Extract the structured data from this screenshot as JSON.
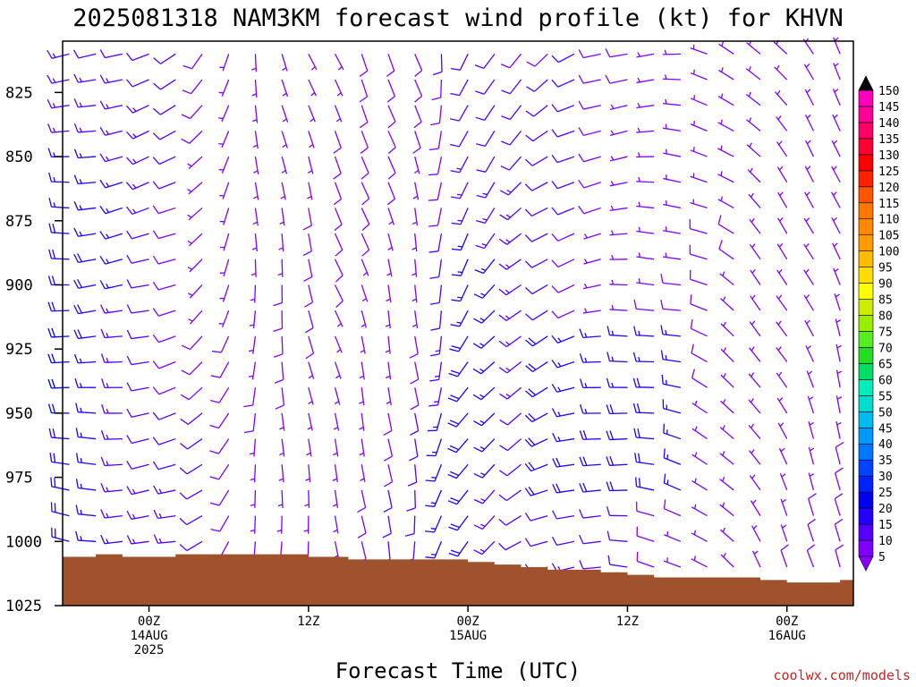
{
  "chart_data": {
    "type": "wind-profile",
    "title": "2025081318 NAM3KM forecast wind profile (kt) for KHVN",
    "xlabel": "Forecast Time (UTC)",
    "credit": "coolwx.com/models",
    "y_axis": {
      "quantity": "pressure (hPa)",
      "scale": "linear",
      "range": [
        805,
        1025
      ],
      "inverted": true,
      "ticks": [
        825,
        850,
        875,
        900,
        925,
        950,
        975,
        1000,
        1025
      ]
    },
    "x_axis": {
      "units": "hours since 2025-08-13 18Z",
      "range": [
        -6.5,
        53
      ],
      "ticks": [
        {
          "hour": 0,
          "lines": [
            "00Z",
            "14AUG",
            "2025"
          ]
        },
        {
          "hour": 12,
          "lines": [
            "12Z"
          ]
        },
        {
          "hour": 24,
          "lines": [
            "00Z",
            "15AUG"
          ]
        },
        {
          "hour": 36,
          "lines": [
            "12Z"
          ]
        },
        {
          "hour": 48,
          "lines": [
            "00Z",
            "16AUG"
          ]
        }
      ]
    },
    "wind_levels_hpa": [
      810,
      820,
      830,
      840,
      850,
      860,
      870,
      880,
      890,
      900,
      910,
      920,
      930,
      940,
      950,
      960,
      970,
      980,
      990,
      1000,
      1010,
      1020
    ],
    "wind_hours": [
      -6,
      -4,
      -2,
      0,
      2,
      4,
      6,
      8,
      10,
      12,
      14,
      16,
      18,
      20,
      22,
      24,
      26,
      28,
      30,
      32,
      34,
      36,
      38,
      40,
      42,
      44,
      46,
      48,
      50,
      52
    ],
    "wind_direction_keyframes": [
      {
        "hour": -6,
        "direction": 270,
        "speed": 20
      },
      {
        "hour": 2,
        "direction": 250,
        "speed": 12
      },
      {
        "hour": 8,
        "direction": 180,
        "speed": 6
      },
      {
        "hour": 14,
        "direction": 160,
        "speed": 8
      },
      {
        "hour": 20,
        "direction": 170,
        "speed": 10
      },
      {
        "hour": 24,
        "direction": 210,
        "speed": 18
      },
      {
        "hour": 28,
        "direction": 230,
        "speed": 14
      },
      {
        "hour": 34,
        "direction": 260,
        "speed": 10
      },
      {
        "hour": 40,
        "direction": 280,
        "speed": 8
      },
      {
        "hour": 46,
        "direction": 320,
        "speed": 6
      },
      {
        "hour": 52,
        "direction": 340,
        "speed": 6
      }
    ],
    "surface_pressure": [
      {
        "hour": -6.5,
        "hpa": 1006
      },
      {
        "hour": -4,
        "hpa": 1005
      },
      {
        "hour": -2,
        "hpa": 1006
      },
      {
        "hour": 2,
        "hpa": 1005
      },
      {
        "hour": 6,
        "hpa": 1005
      },
      {
        "hour": 10,
        "hpa": 1005
      },
      {
        "hour": 12,
        "hpa": 1006
      },
      {
        "hour": 15,
        "hpa": 1007
      },
      {
        "hour": 22,
        "hpa": 1007
      },
      {
        "hour": 24,
        "hpa": 1008
      },
      {
        "hour": 26,
        "hpa": 1009
      },
      {
        "hour": 28,
        "hpa": 1010
      },
      {
        "hour": 30,
        "hpa": 1011
      },
      {
        "hour": 34,
        "hpa": 1012
      },
      {
        "hour": 36,
        "hpa": 1013
      },
      {
        "hour": 38,
        "hpa": 1014
      },
      {
        "hour": 42,
        "hpa": 1014
      },
      {
        "hour": 46,
        "hpa": 1015
      },
      {
        "hour": 48,
        "hpa": 1016
      },
      {
        "hour": 50,
        "hpa": 1016
      },
      {
        "hour": 52,
        "hpa": 1015
      }
    ],
    "ground_color": "#a0522d",
    "colorbar": {
      "levels": [
        5,
        10,
        15,
        20,
        25,
        30,
        35,
        40,
        45,
        50,
        55,
        60,
        65,
        70,
        75,
        80,
        85,
        90,
        95,
        100,
        105,
        110,
        115,
        120,
        125,
        130,
        135,
        140,
        145,
        150
      ],
      "colors": [
        "#8000ff",
        "#5500ff",
        "#2200ff",
        "#0000ee",
        "#0022ff",
        "#0044ff",
        "#0077ff",
        "#0099ff",
        "#00bbee",
        "#00ddcc",
        "#00eebb",
        "#00dd66",
        "#22dd22",
        "#55ee22",
        "#99ee00",
        "#ccee00",
        "#ffff00",
        "#ffdd00",
        "#ffbb00",
        "#ff9900",
        "#ff8800",
        "#ff7700",
        "#ff5500",
        "#ff2200",
        "#ff0000",
        "#ff0033",
        "#ff0066",
        "#ff0099",
        "#ff00bb",
        "#ff00dd"
      ],
      "min_color": "#8800ff",
      "max_color": "#000000"
    }
  }
}
